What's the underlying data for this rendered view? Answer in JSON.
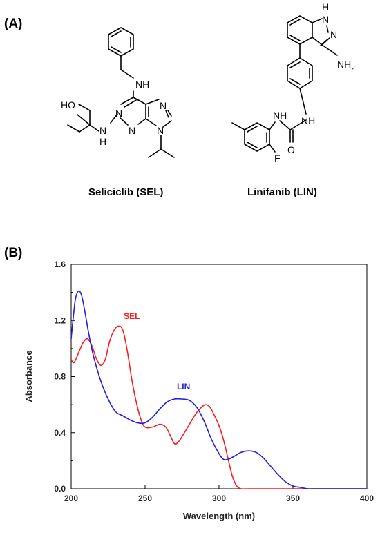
{
  "panels": {
    "a_label": "(A)",
    "b_label": "(B)"
  },
  "molecules": {
    "seliciclib": {
      "caption": "Seliciclib (SEL)",
      "atoms": {
        "nh_top": "NH",
        "ho": "HO",
        "n1": "N",
        "n2": "N",
        "n3": "N",
        "n4": "N",
        "nh_left_n": "N",
        "nh_left_h": "H"
      }
    },
    "linifanib": {
      "caption": "Linifanib (LIN)",
      "atoms": {
        "h_top": "H",
        "n_top": "N",
        "n_ring": "N",
        "nh2": "NH",
        "nh2_sub": "2",
        "nh_right": "NH",
        "nh_left": "NH",
        "o": "O",
        "f": "F"
      }
    }
  },
  "colors": {
    "sel": "#ff1a1a",
    "lin": "#1f1fdd",
    "frame": "#000000"
  },
  "chart_data": {
    "type": "line",
    "xlabel": "Wavelength (nm)",
    "ylabel": "Absorbance",
    "xlim": [
      200,
      400
    ],
    "ylim": [
      0,
      1.6
    ],
    "xticks": [
      "200",
      "250",
      "300",
      "350",
      "400"
    ],
    "yticks": [
      "0.0",
      "0.4",
      "0.8",
      "1.2",
      "1.6"
    ],
    "grid": false,
    "series": [
      {
        "name": "SEL",
        "x": [
          200,
          202,
          205,
          208,
          211,
          214,
          217,
          220,
          223,
          226,
          229,
          232,
          235,
          238,
          241,
          244,
          247,
          250,
          255,
          260,
          264,
          267,
          270,
          273,
          276,
          280,
          284,
          288,
          291,
          294,
          297,
          300,
          303,
          306,
          309,
          312,
          315,
          320,
          340,
          360,
          380,
          400
        ],
        "y": [
          0.92,
          0.9,
          0.97,
          1.04,
          1.07,
          1.02,
          0.93,
          0.88,
          0.92,
          1.05,
          1.13,
          1.16,
          1.13,
          0.98,
          0.78,
          0.62,
          0.5,
          0.44,
          0.44,
          0.46,
          0.44,
          0.38,
          0.32,
          0.34,
          0.39,
          0.46,
          0.53,
          0.58,
          0.6,
          0.58,
          0.52,
          0.45,
          0.35,
          0.22,
          0.09,
          0.02,
          0.0,
          0.0,
          0.0,
          0.0,
          0.0,
          0.0
        ]
      },
      {
        "name": "LIN",
        "x": [
          200,
          201,
          202,
          203,
          205,
          207,
          209,
          212,
          215,
          220,
          225,
          230,
          235,
          240,
          245,
          250,
          255,
          260,
          265,
          270,
          275,
          280,
          285,
          290,
          295,
          300,
          303,
          306,
          310,
          315,
          320,
          325,
          330,
          335,
          340,
          345,
          350,
          355,
          360,
          365,
          370,
          380,
          390,
          400
        ],
        "y": [
          1.07,
          1.18,
          1.28,
          1.36,
          1.41,
          1.38,
          1.28,
          1.1,
          0.95,
          0.77,
          0.64,
          0.55,
          0.52,
          0.49,
          0.47,
          0.47,
          0.51,
          0.57,
          0.62,
          0.64,
          0.64,
          0.63,
          0.58,
          0.48,
          0.35,
          0.25,
          0.21,
          0.21,
          0.23,
          0.26,
          0.27,
          0.26,
          0.22,
          0.16,
          0.1,
          0.05,
          0.02,
          0.01,
          0.0,
          0.0,
          0.0,
          0.0,
          0.0,
          0.0
        ]
      }
    ],
    "annotations": [
      {
        "text": "SEL",
        "series": "SEL",
        "x": 241,
        "y": 1.21
      },
      {
        "text": "LIN",
        "series": "LIN",
        "x": 276,
        "y": 0.71
      }
    ]
  }
}
